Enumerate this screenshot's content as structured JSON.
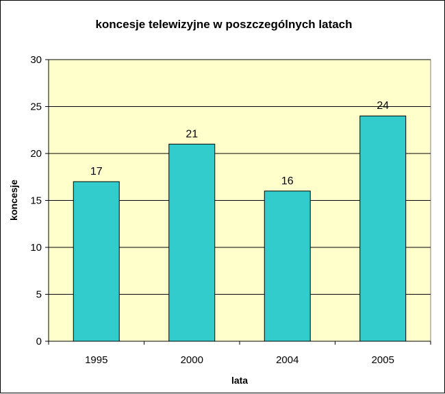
{
  "chart_data": {
    "type": "bar",
    "title": "koncesje telewizyjne w poszczególnych latach",
    "xlabel": "lata",
    "ylabel": "koncesje",
    "categories": [
      "1995",
      "2000",
      "2004",
      "2005"
    ],
    "values": [
      17,
      21,
      16,
      24
    ],
    "ylim": [
      0,
      30
    ],
    "yticks": [
      0,
      5,
      10,
      15,
      20,
      25,
      30
    ],
    "grid": true,
    "legend": "none",
    "colors": {
      "bar": "#33CCCC",
      "plot_background": "#FFFFCC",
      "gridline": "#000000"
    }
  }
}
